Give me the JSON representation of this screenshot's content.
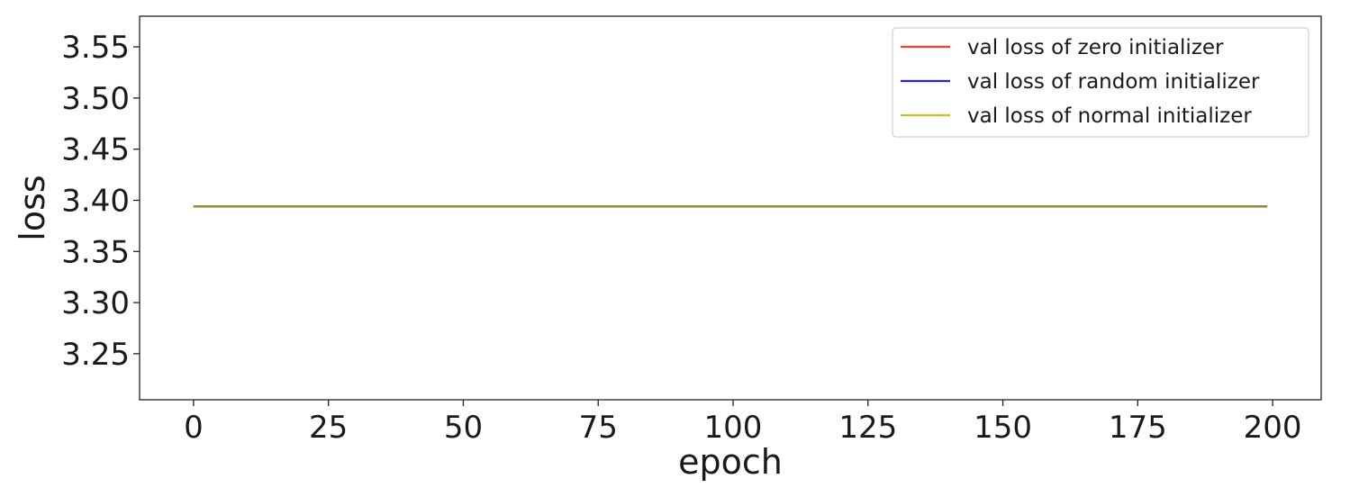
{
  "chart_data": {
    "type": "line",
    "title": "",
    "xlabel": "epoch",
    "ylabel": "loss",
    "xlim": [
      -10,
      209
    ],
    "ylim": [
      3.205,
      3.58
    ],
    "xticks": [
      0,
      25,
      50,
      75,
      100,
      125,
      150,
      175,
      200
    ],
    "yticks": [
      3.25,
      3.3,
      3.35,
      3.4,
      3.45,
      3.5,
      3.55
    ],
    "grid": false,
    "legend_position": "top-right",
    "series": [
      {
        "name": "val loss of zero initializer",
        "color": "#ff3b30",
        "x": [
          0,
          199
        ],
        "y": [
          3.394,
          3.394
        ]
      },
      {
        "name": "val loss of random initializer",
        "color": "#2222ee",
        "x": [
          0,
          199
        ],
        "y": [
          3.394,
          3.394
        ]
      },
      {
        "name": "val loss of normal initializer",
        "color": "#c8c020",
        "x": [
          0,
          199
        ],
        "y": [
          3.394,
          3.394
        ]
      }
    ],
    "overlap_color": "#8b8a2a"
  }
}
